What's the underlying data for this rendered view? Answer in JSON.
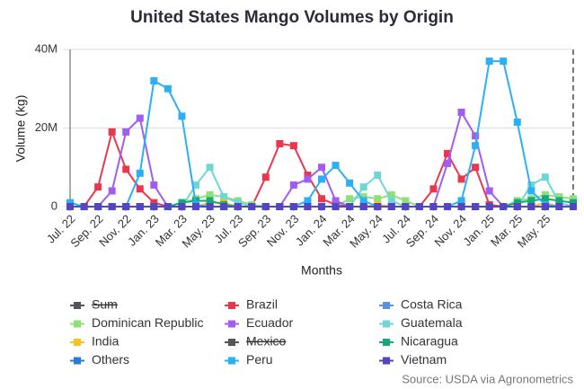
{
  "chart_data": {
    "type": "line",
    "title": "United States Mango Volumes by Origin",
    "y_label": "Volume (kg)",
    "x_label": "Months",
    "source": "Source: USDA via Agronometrics",
    "categories": [
      "Jul. 22",
      null,
      "Sep. 22",
      null,
      "Nov. 22",
      null,
      "Jan. 23",
      null,
      "Mar. 23",
      null,
      "May. 23",
      null,
      "Jul. 23",
      null,
      "Sep. 23",
      null,
      "Nov. 23",
      null,
      "Jan. 24",
      null,
      "Mar. 24",
      null,
      "May. 24",
      null,
      "Jul. 24",
      null,
      "Sep. 24",
      null,
      "Nov. 24",
      null,
      "Jan. 25",
      null,
      "Mar. 25",
      null,
      "May. 25",
      null,
      null
    ],
    "ylim": [
      0,
      40000000
    ],
    "yticks": [
      0,
      {
        "value": 20000000,
        "label": "20M"
      },
      {
        "value": 40000000,
        "label": "40M"
      }
    ],
    "grid": true,
    "series": [
      {
        "name": "Sum",
        "color": "#555555",
        "hidden": true
      },
      {
        "name": "Brazil",
        "color": "#e8384f",
        "values": [
          0,
          0,
          5000000,
          19000000,
          9500000,
          4500000,
          1000000,
          0,
          0,
          0,
          0,
          0,
          0,
          0,
          7500000,
          16000000,
          15500000,
          8000000,
          2000000,
          500000,
          0,
          0,
          0,
          0,
          0,
          0,
          4500000,
          13500000,
          7000000,
          10000000,
          500000,
          0,
          0,
          0,
          0,
          0,
          0
        ]
      },
      {
        "name": "Costa Rica",
        "color": "#5b8fe0",
        "values": [
          0,
          0,
          0,
          0,
          0,
          0,
          0,
          0,
          0,
          0,
          0,
          0,
          0,
          0,
          0,
          0,
          0,
          0,
          0,
          0,
          0,
          0,
          0,
          0,
          0,
          0,
          0,
          0,
          0,
          0,
          0,
          0,
          0,
          0,
          0,
          0,
          0
        ]
      },
      {
        "name": "Dominican Republic",
        "color": "#8ee07a",
        "values": [
          0,
          0,
          0,
          0,
          0,
          0,
          0,
          0,
          1000000,
          2000000,
          3000000,
          2500000,
          1500000,
          500000,
          0,
          0,
          0,
          0,
          0,
          0,
          2000000,
          2500000,
          2000000,
          3000000,
          1500000,
          0,
          0,
          0,
          0,
          0,
          0,
          0,
          1500000,
          2000000,
          3000000,
          2500000,
          2000000
        ]
      },
      {
        "name": "Ecuador",
        "color": "#a35cf0",
        "values": [
          0,
          0,
          0,
          4000000,
          19000000,
          22500000,
          5500000,
          0,
          0,
          0,
          0,
          0,
          0,
          0,
          0,
          0,
          5500000,
          7000000,
          10000000,
          1500000,
          0,
          0,
          0,
          0,
          0,
          0,
          0,
          11000000,
          24000000,
          18000000,
          4000000,
          0,
          0,
          0,
          0,
          0,
          0
        ]
      },
      {
        "name": "Guatemala",
        "color": "#6fd6d6",
        "values": [
          0,
          0,
          0,
          0,
          0,
          0,
          0,
          0,
          0,
          5500000,
          10000000,
          2500000,
          1000000,
          0,
          0,
          0,
          0,
          0,
          0,
          0,
          0,
          5000000,
          8000000,
          1500000,
          0,
          0,
          0,
          0,
          0,
          0,
          0,
          0,
          0,
          5500000,
          7500000,
          1000000,
          0
        ]
      },
      {
        "name": "India",
        "color": "#f6c31c",
        "values": [
          0,
          0,
          0,
          0,
          0,
          0,
          0,
          0,
          0,
          0,
          1000000,
          1000000,
          0,
          0,
          0,
          0,
          0,
          0,
          0,
          0,
          0,
          0,
          500000,
          0,
          0,
          0,
          0,
          0,
          0,
          0,
          0,
          0,
          0,
          0,
          1000000,
          0,
          0
        ]
      },
      {
        "name": "Mexico",
        "color": "#555555",
        "hidden": true
      },
      {
        "name": "Nicaragua",
        "color": "#13a97a",
        "values": [
          0,
          0,
          0,
          0,
          0,
          0,
          0,
          0,
          1000000,
          1500000,
          1500000,
          500000,
          0,
          0,
          0,
          0,
          0,
          0,
          0,
          0,
          0,
          0,
          0,
          0,
          0,
          0,
          0,
          0,
          0,
          0,
          0,
          0,
          1000000,
          1500000,
          2000000,
          1500000,
          1000000
        ]
      },
      {
        "name": "Others",
        "color": "#2a7ad8",
        "values": [
          0,
          0,
          0,
          0,
          0,
          0,
          0,
          0,
          0,
          0,
          0,
          0,
          0,
          0,
          0,
          0,
          0,
          0,
          0,
          0,
          0,
          0,
          0,
          0,
          0,
          0,
          0,
          0,
          0,
          0,
          0,
          0,
          0,
          0,
          0,
          0,
          0
        ]
      },
      {
        "name": "Peru",
        "color": "#2bb0f5",
        "values": [
          1000000,
          0,
          0,
          0,
          0,
          8500000,
          32000000,
          30000000,
          23000000,
          500000,
          0,
          0,
          0,
          0,
          0,
          0,
          0,
          1500000,
          7000000,
          10500000,
          6000000,
          1500000,
          0,
          0,
          0,
          0,
          0,
          0,
          1500000,
          15500000,
          37000000,
          37000000,
          21500000,
          4000000,
          500000,
          0,
          0
        ]
      },
      {
        "name": "Vietnam",
        "color": "#5445c0",
        "values": [
          0,
          0,
          0,
          0,
          0,
          0,
          0,
          0,
          0,
          0,
          0,
          0,
          0,
          0,
          0,
          0,
          0,
          0,
          0,
          0,
          0,
          0,
          0,
          0,
          0,
          0,
          0,
          0,
          0,
          0,
          0,
          0,
          0,
          0,
          0,
          0,
          0
        ]
      }
    ]
  }
}
